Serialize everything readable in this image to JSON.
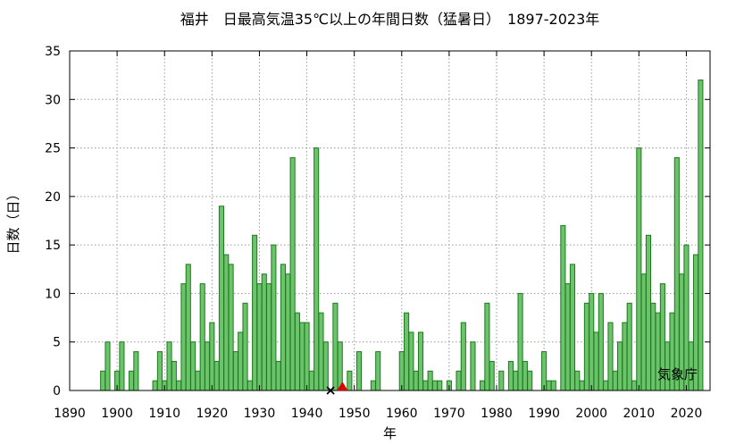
{
  "chart_data": {
    "type": "bar",
    "title": "福井　日最高気温35℃以上の年間日数（猛暑日）　1897-2023年",
    "xlabel": "年",
    "ylabel": "日数（日）",
    "xlim": [
      1890,
      2025
    ],
    "ylim": [
      0,
      35
    ],
    "x_ticks": [
      1890,
      1900,
      1910,
      1920,
      1930,
      1940,
      1950,
      1960,
      1970,
      1980,
      1990,
      2000,
      2010,
      2020
    ],
    "y_ticks": [
      0,
      5,
      10,
      15,
      20,
      25,
      30,
      35
    ],
    "grid": true,
    "bar_color": "#6cc36c",
    "bar_edge_color": "#1c7a1c",
    "series": [
      {
        "x": [
          1897,
          1898,
          1899,
          1900,
          1901,
          1902,
          1903,
          1904,
          1905,
          1906,
          1907,
          1908,
          1909,
          1910,
          1911,
          1912,
          1913,
          1914,
          1915,
          1916,
          1917,
          1918,
          1919,
          1920,
          1921,
          1922,
          1923,
          1924,
          1925,
          1926,
          1927,
          1928,
          1929,
          1930,
          1931,
          1932,
          1933,
          1934,
          1935,
          1936,
          1937,
          1938,
          1939,
          1940,
          1941,
          1942,
          1943,
          1944,
          1945,
          1946,
          1947,
          1948,
          1949,
          1950,
          1951,
          1952,
          1953,
          1954,
          1955,
          1956,
          1957,
          1958,
          1959,
          1960,
          1961,
          1962,
          1963,
          1964,
          1965,
          1966,
          1967,
          1968,
          1969,
          1970,
          1971,
          1972,
          1973,
          1974,
          1975,
          1976,
          1977,
          1978,
          1979,
          1980,
          1981,
          1982,
          1983,
          1984,
          1985,
          1986,
          1987,
          1988,
          1989,
          1990,
          1991,
          1992,
          1993,
          1994,
          1995,
          1996,
          1997,
          1998,
          1999,
          2000,
          2001,
          2002,
          2003,
          2004,
          2005,
          2006,
          2007,
          2008,
          2009,
          2010,
          2011,
          2012,
          2013,
          2014,
          2015,
          2016,
          2017,
          2018,
          2019,
          2020,
          2021,
          2022,
          2023
        ],
        "values": [
          2,
          5,
          0,
          2,
          5,
          0,
          2,
          4,
          0,
          0,
          0,
          1,
          4,
          1,
          5,
          3,
          1,
          11,
          13,
          5,
          2,
          11,
          5,
          7,
          3,
          19,
          14,
          13,
          4,
          6,
          9,
          1,
          16,
          11,
          12,
          11,
          15,
          3,
          13,
          12,
          24,
          8,
          7,
          7,
          2,
          25,
          8,
          5,
          0,
          9,
          5,
          0,
          2,
          0,
          4,
          0,
          0,
          1,
          4,
          0,
          0,
          0,
          0,
          4,
          8,
          6,
          2,
          6,
          1,
          2,
          1,
          1,
          0,
          1,
          0,
          2,
          7,
          0,
          5,
          0,
          1,
          9,
          3,
          0,
          2,
          0,
          3,
          2,
          10,
          3,
          2,
          0,
          0,
          4,
          1,
          1,
          0,
          17,
          11,
          13,
          2,
          1,
          9,
          10,
          6,
          10,
          1,
          7,
          2,
          5,
          7,
          9,
          1,
          25,
          12,
          16,
          9,
          8,
          11,
          5,
          8,
          24,
          12,
          15,
          5,
          14,
          32
        ]
      }
    ],
    "annotations": {
      "cross_marker_year": 1945,
      "triangle_marker_year": 1947.5,
      "triangle_marker_color": "#dd0000",
      "credit": "気象庁"
    }
  }
}
